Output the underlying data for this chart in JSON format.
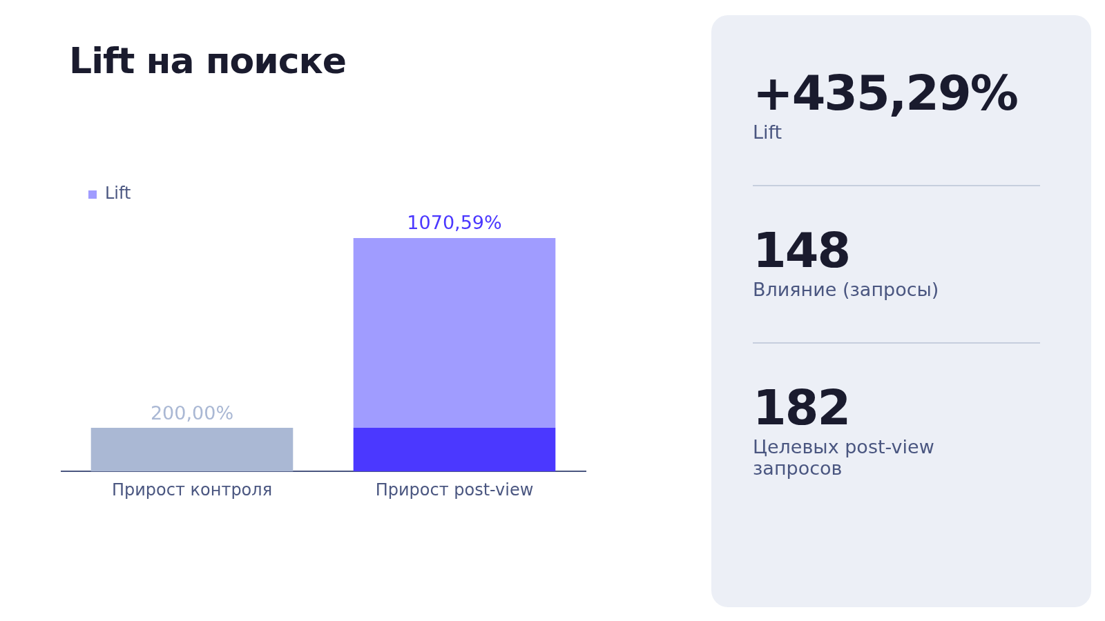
{
  "chart_data": [
    {
      "type": "bar",
      "title": "Lift на поиске",
      "stacked": true,
      "legend": "top left",
      "tick_labels": "x",
      "grid": false,
      "categories": [
        "Прирост контроля",
        "Прирост post-view"
      ],
      "series": [
        {
          "colors": [
            "#aab8d4",
            "#4b38ff"
          ],
          "values": [
            200,
            200
          ],
          "value_labels": [
            "200,00%",
            null
          ]
        },
        {
          "name": "Lift",
          "color": "#a09cff",
          "values": [
            null,
            870.59
          ]
        }
      ],
      "totals": [
        null,
        "1070,59%"
      ]
    },
    {
      "type": "other",
      "annotations": [
        "+435,29%",
        "Lift",
        "148",
        "Влияние (запросы)",
        "182",
        "Целевых post-view запросов"
      ]
    }
  ]
}
